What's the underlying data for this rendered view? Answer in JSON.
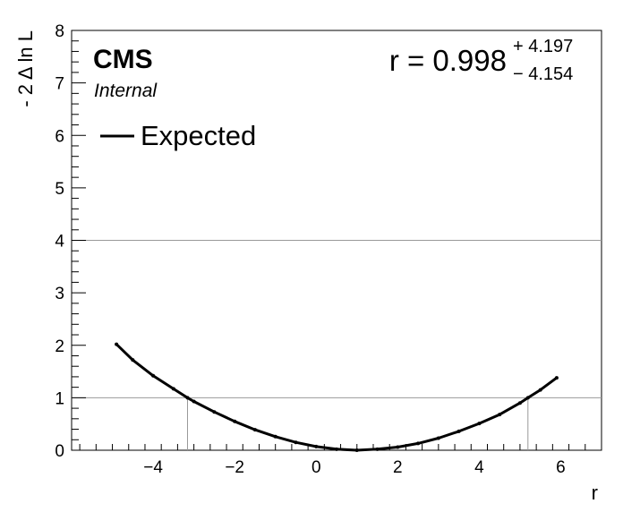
{
  "chart_data": {
    "type": "line",
    "xlabel": "r",
    "ylabel": "- 2 Δ ln L",
    "xlim": [
      -6.0,
      7.0
    ],
    "ylim": [
      0,
      8
    ],
    "x_ticks": [
      -4,
      -2,
      0,
      2,
      4,
      6
    ],
    "y_ticks": [
      0,
      1,
      2,
      3,
      4,
      5,
      6,
      7,
      8
    ],
    "x_tick_labels": [
      "−4",
      "−2",
      "0",
      "2",
      "4",
      "6"
    ],
    "y_tick_labels": [
      "0",
      "1",
      "2",
      "3",
      "4",
      "5",
      "6",
      "7",
      "8"
    ],
    "reference_lines_y": [
      1,
      4
    ],
    "interval_lines_x": [
      -3.156,
      5.195
    ],
    "experiment_label": "CMS",
    "status_label": "Internal",
    "result": {
      "text": "r = 0.998",
      "upper": "+ 4.197",
      "lower": "− 4.154",
      "best_fit": 0.998
    },
    "legend": {
      "position": "top-left",
      "entries": [
        "Expected"
      ]
    },
    "series": [
      {
        "name": "Expected",
        "color": "#000000",
        "x": [
          -4.9,
          -4.5,
          -4.0,
          -3.5,
          -3.156,
          -3.0,
          -2.5,
          -2.0,
          -1.5,
          -1.0,
          -0.5,
          0.0,
          0.5,
          0.998,
          1.5,
          2.0,
          2.5,
          3.0,
          3.5,
          4.0,
          4.5,
          5.0,
          5.195,
          5.5,
          5.9
        ],
        "y": [
          2.02,
          1.72,
          1.42,
          1.17,
          1.0,
          0.93,
          0.73,
          0.55,
          0.39,
          0.26,
          0.15,
          0.07,
          0.02,
          0.0,
          0.02,
          0.06,
          0.13,
          0.23,
          0.36,
          0.51,
          0.68,
          0.9,
          1.0,
          1.15,
          1.38
        ]
      }
    ]
  }
}
